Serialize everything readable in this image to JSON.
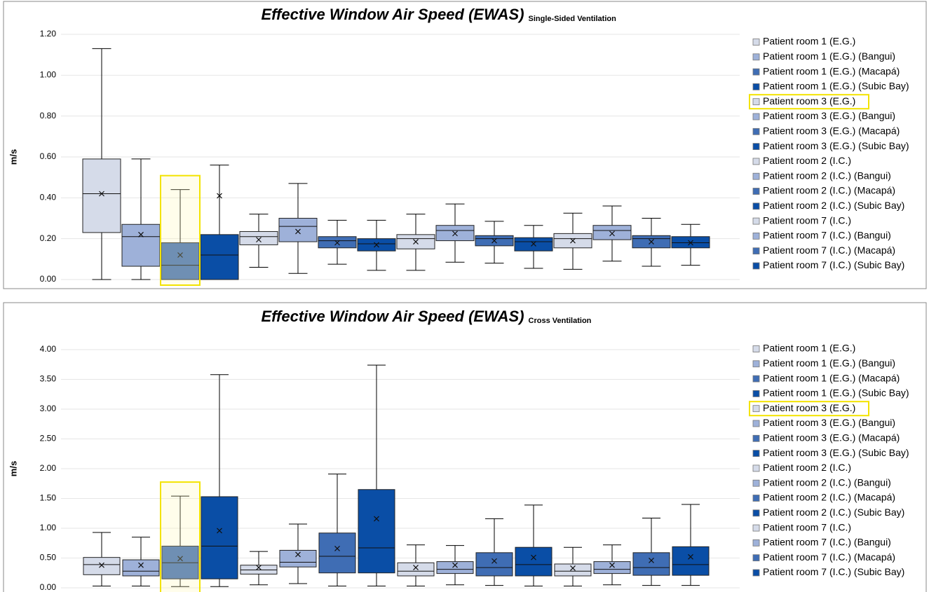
{
  "chart_data": [
    {
      "type": "box",
      "title": "Effective Window Air Speed (EWAS)",
      "subtitle": "Single-Sided Ventilation",
      "y_label": "m/s",
      "ylim": [
        0,
        1.2
      ],
      "yticks": [
        {
          "value": 0,
          "label": "0.00"
        },
        {
          "value": 0.2,
          "label": "0.20"
        },
        {
          "value": 0.4,
          "label": "0.40"
        },
        {
          "value": 0.6,
          "label": "0.60"
        },
        {
          "value": 0.8,
          "label": "0.80"
        },
        {
          "value": 1.0,
          "label": "1.00"
        },
        {
          "value": 1.2,
          "label": "1.20"
        }
      ],
      "grid": true,
      "legend": "right",
      "highlight_box": 2,
      "highlight_legend": 4,
      "series": [
        {
          "name": "Patient room 1 (E.G.)",
          "color": "#d5dbe9",
          "min": 0,
          "q1": 0.23,
          "median": 0.42,
          "q3": 0.59,
          "max": 1.13,
          "mean": 0.42
        },
        {
          "name": "Patient room 1 (E.G.) (Bangui)",
          "color": "#9eb1d9",
          "min": 0,
          "q1": 0.065,
          "median": 0.21,
          "q3": 0.27,
          "max": 0.59,
          "mean": 0.22
        },
        {
          "name": "Patient room 1 (E.G.) (Macapá)",
          "color": "#3f6db4",
          "min": 0,
          "q1": 0,
          "median": 0.07,
          "q3": 0.18,
          "max": 0.44,
          "mean": 0.12
        },
        {
          "name": "Patient room 1 (E.G.) (Subic Bay)",
          "color": "#0a4ea6",
          "min": 0,
          "q1": 0,
          "median": 0.12,
          "q3": 0.22,
          "max": 0.56,
          "mean": 0.41
        },
        {
          "name": "Patient room 3 (E.G.)",
          "color": "#d5dbe9",
          "min": 0.06,
          "q1": 0.17,
          "median": 0.21,
          "q3": 0.235,
          "max": 0.32,
          "mean": 0.195
        },
        {
          "name": "Patient room 3 (E.G.) (Bangui)",
          "color": "#9eb1d9",
          "min": 0.03,
          "q1": 0.185,
          "median": 0.26,
          "q3": 0.3,
          "max": 0.47,
          "mean": 0.235
        },
        {
          "name": "Patient room 3 (E.G.) (Macapá)",
          "color": "#3f6db4",
          "min": 0.075,
          "q1": 0.155,
          "median": 0.19,
          "q3": 0.21,
          "max": 0.29,
          "mean": 0.18
        },
        {
          "name": "Patient room 3 (E.G.) (Subic Bay)",
          "color": "#0a4ea6",
          "min": 0.045,
          "q1": 0.14,
          "median": 0.175,
          "q3": 0.2,
          "max": 0.29,
          "mean": 0.17
        },
        {
          "name": "Patient room 2 (I.C.)",
          "color": "#d5dbe9",
          "min": 0.045,
          "q1": 0.15,
          "median": 0.2,
          "q3": 0.22,
          "max": 0.32,
          "mean": 0.185
        },
        {
          "name": "Patient room 2 (I.C.) (Bangui)",
          "color": "#9eb1d9",
          "min": 0.085,
          "q1": 0.19,
          "median": 0.24,
          "q3": 0.265,
          "max": 0.37,
          "mean": 0.225
        },
        {
          "name": "Patient room 2 (I.C.) (Macapá)",
          "color": "#3f6db4",
          "min": 0.08,
          "q1": 0.165,
          "median": 0.2,
          "q3": 0.215,
          "max": 0.285,
          "mean": 0.19
        },
        {
          "name": "Patient room 2 (I.C.) (Subic Bay)",
          "color": "#0a4ea6",
          "min": 0.055,
          "q1": 0.14,
          "median": 0.185,
          "q3": 0.205,
          "max": 0.265,
          "mean": 0.175
        },
        {
          "name": "Patient room 7 (I.C.)",
          "color": "#d5dbe9",
          "min": 0.05,
          "q1": 0.155,
          "median": 0.2,
          "q3": 0.225,
          "max": 0.325,
          "mean": 0.19
        },
        {
          "name": "Patient room 7 (I.C.) (Bangui)",
          "color": "#9eb1d9",
          "min": 0.09,
          "q1": 0.195,
          "median": 0.24,
          "q3": 0.265,
          "max": 0.36,
          "mean": 0.225
        },
        {
          "name": "Patient room 7 (I.C.) (Macapá)",
          "color": "#3f6db4",
          "min": 0.065,
          "q1": 0.155,
          "median": 0.2,
          "q3": 0.215,
          "max": 0.3,
          "mean": 0.185
        },
        {
          "name": "Patient room 7 (I.C.) (Subic Bay)",
          "color": "#0a4ea6",
          "min": 0.07,
          "q1": 0.155,
          "median": 0.18,
          "q3": 0.21,
          "max": 0.27,
          "mean": 0.18
        }
      ]
    },
    {
      "type": "box",
      "title": "Effective Window Air Speed (EWAS)",
      "subtitle": "Cross Ventilation",
      "y_label": "m/s",
      "ylim": [
        0,
        4
      ],
      "yticks": [
        {
          "value": 0,
          "label": "0.00"
        },
        {
          "value": 0.5,
          "label": "0.50"
        },
        {
          "value": 1.0,
          "label": "1.00"
        },
        {
          "value": 1.5,
          "label": "1.50"
        },
        {
          "value": 2.0,
          "label": "2.00"
        },
        {
          "value": 2.5,
          "label": "2.50"
        },
        {
          "value": 3.0,
          "label": "3.00"
        },
        {
          "value": 3.5,
          "label": "3.50"
        },
        {
          "value": 4.0,
          "label": "4.00"
        }
      ],
      "grid": true,
      "legend": "right",
      "highlight_box": 2,
      "highlight_legend": 4,
      "series": [
        {
          "name": "Patient room 1 (E.G.)",
          "color": "#d5dbe9",
          "min": 0.03,
          "q1": 0.22,
          "median": 0.39,
          "q3": 0.51,
          "max": 0.93,
          "mean": 0.38
        },
        {
          "name": "Patient room 1 (E.G.) (Bangui)",
          "color": "#9eb1d9",
          "min": 0.03,
          "q1": 0.2,
          "median": 0.28,
          "q3": 0.47,
          "max": 0.85,
          "mean": 0.38
        },
        {
          "name": "Patient room 1 (E.G.) (Macapá)",
          "color": "#3f6db4",
          "min": 0.02,
          "q1": 0.15,
          "median": 0.42,
          "q3": 0.7,
          "max": 1.54,
          "mean": 0.49
        },
        {
          "name": "Patient room 1 (E.G.) (Subic Bay)",
          "color": "#0a4ea6",
          "min": 0.02,
          "q1": 0.15,
          "median": 0.7,
          "q3": 1.53,
          "max": 3.58,
          "mean": 0.96
        },
        {
          "name": "Patient room 3 (E.G.)",
          "color": "#d5dbe9",
          "min": 0.05,
          "q1": 0.23,
          "median": 0.3,
          "q3": 0.38,
          "max": 0.61,
          "mean": 0.34
        },
        {
          "name": "Patient room 3 (E.G.) (Bangui)",
          "color": "#9eb1d9",
          "min": 0.07,
          "q1": 0.35,
          "median": 0.43,
          "q3": 0.63,
          "max": 1.07,
          "mean": 0.56
        },
        {
          "name": "Patient room 3 (E.G.) (Macapá)",
          "color": "#3f6db4",
          "min": 0.03,
          "q1": 0.25,
          "median": 0.53,
          "q3": 0.92,
          "max": 1.91,
          "mean": 0.66
        },
        {
          "name": "Patient room 3 (E.G.) (Subic Bay)",
          "color": "#0a4ea6",
          "min": 0.03,
          "q1": 0.25,
          "median": 0.67,
          "q3": 1.65,
          "max": 3.74,
          "mean": 1.16
        },
        {
          "name": "Patient room 2 (I.C.)",
          "color": "#d5dbe9",
          "min": 0.03,
          "q1": 0.2,
          "median": 0.28,
          "q3": 0.42,
          "max": 0.72,
          "mean": 0.34
        },
        {
          "name": "Patient room 2 (I.C.) (Bangui)",
          "color": "#9eb1d9",
          "min": 0.05,
          "q1": 0.24,
          "median": 0.31,
          "q3": 0.44,
          "max": 0.71,
          "mean": 0.38
        },
        {
          "name": "Patient room 2 (I.C.) (Macapá)",
          "color": "#3f6db4",
          "min": 0.04,
          "q1": 0.2,
          "median": 0.34,
          "q3": 0.59,
          "max": 1.16,
          "mean": 0.45
        },
        {
          "name": "Patient room 2 (I.C.) (Subic Bay)",
          "color": "#0a4ea6",
          "min": 0.03,
          "q1": 0.2,
          "median": 0.39,
          "q3": 0.68,
          "max": 1.39,
          "mean": 0.51
        },
        {
          "name": "Patient room 7 (I.C.)",
          "color": "#d5dbe9",
          "min": 0.03,
          "q1": 0.2,
          "median": 0.28,
          "q3": 0.4,
          "max": 0.68,
          "mean": 0.33
        },
        {
          "name": "Patient room 7 (I.C.) (Bangui)",
          "color": "#9eb1d9",
          "min": 0.05,
          "q1": 0.24,
          "median": 0.31,
          "q3": 0.44,
          "max": 0.72,
          "mean": 0.38
        },
        {
          "name": "Patient room 7 (I.C.) (Macapá)",
          "color": "#3f6db4",
          "min": 0.04,
          "q1": 0.21,
          "median": 0.34,
          "q3": 0.59,
          "max": 1.17,
          "mean": 0.46
        },
        {
          "name": "Patient room 7 (I.C.) (Subic Bay)",
          "color": "#0a4ea6",
          "min": 0.04,
          "q1": 0.21,
          "median": 0.39,
          "q3": 0.69,
          "max": 1.4,
          "mean": 0.52
        }
      ]
    }
  ]
}
